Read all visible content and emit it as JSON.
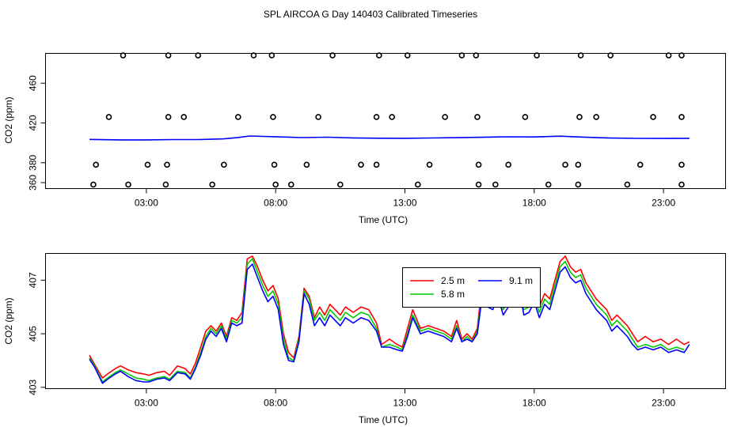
{
  "page_title": "SPL AIRCOA G  Day 140403  Calibrated Timeseries",
  "chart_data": [
    {
      "type": "line",
      "xlabel": "Time (UTC)",
      "ylabel": "CO2 (ppm)",
      "x_unit": "hours UTC",
      "xlim": [
        -0.9,
        25.4
      ],
      "ylim": [
        354,
        490
      ],
      "x_ticks": [
        3,
        8,
        13,
        18,
        23
      ],
      "x_tick_labels": [
        "03:00",
        "08:00",
        "13:00",
        "18:00",
        "23:00"
      ],
      "y_ticks": [
        360,
        380,
        420,
        460
      ],
      "y_tick_labels": [
        "360",
        "380",
        "420",
        "460"
      ],
      "grid": false,
      "colors": {
        "line": "#0000ff",
        "overlay": "#ff0000",
        "marker": "#000000"
      },
      "series": [
        {
          "style": "line",
          "color": "#0000ff",
          "x": [
            0.8,
            2.0,
            3.0,
            4.0,
            5.0,
            6.0,
            6.5,
            7.0,
            8.0,
            9.0,
            10.0,
            11.0,
            12.0,
            13.0,
            14.0,
            15.0,
            16.0,
            17.0,
            18.0,
            19.0,
            20.0,
            21.0,
            22.0,
            23.0,
            24.0
          ],
          "y": [
            403.5,
            403.0,
            403.0,
            403.3,
            403.3,
            404.0,
            405.2,
            406.9,
            406.2,
            405.3,
            405.7,
            405.0,
            404.7,
            404.6,
            404.9,
            405.2,
            405.6,
            406.1,
            405.9,
            406.7,
            405.6,
            404.8,
            404.5,
            404.4,
            404.6
          ]
        },
        {
          "style": "points",
          "color": "#000000",
          "points": [
            [
              0.95,
              358
            ],
            [
              2.3,
              358
            ],
            [
              3.75,
              358
            ],
            [
              5.55,
              358
            ],
            [
              8.0,
              358
            ],
            [
              8.6,
              358
            ],
            [
              10.5,
              358
            ],
            [
              13.5,
              358
            ],
            [
              15.85,
              358
            ],
            [
              16.5,
              358
            ],
            [
              18.55,
              358
            ],
            [
              19.7,
              358
            ],
            [
              21.6,
              358
            ],
            [
              23.7,
              358
            ],
            [
              1.05,
              378
            ],
            [
              3.05,
              378
            ],
            [
              3.8,
              378
            ],
            [
              6.0,
              378
            ],
            [
              7.95,
              378
            ],
            [
              9.2,
              378
            ],
            [
              11.3,
              378
            ],
            [
              11.9,
              378
            ],
            [
              13.95,
              378
            ],
            [
              15.85,
              378
            ],
            [
              17.0,
              378
            ],
            [
              19.2,
              378
            ],
            [
              19.7,
              378
            ],
            [
              22.1,
              378
            ],
            [
              23.7,
              378
            ],
            [
              1.55,
              426
            ],
            [
              3.85,
              426
            ],
            [
              4.45,
              426
            ],
            [
              6.55,
              426
            ],
            [
              7.9,
              426
            ],
            [
              9.65,
              426
            ],
            [
              11.9,
              426
            ],
            [
              12.5,
              426
            ],
            [
              14.55,
              426
            ],
            [
              15.8,
              426
            ],
            [
              17.65,
              426
            ],
            [
              19.75,
              426
            ],
            [
              20.4,
              426
            ],
            [
              22.6,
              426
            ],
            [
              23.7,
              426
            ],
            [
              2.1,
              488
            ],
            [
              3.85,
              488
            ],
            [
              5.0,
              488
            ],
            [
              7.15,
              488
            ],
            [
              7.85,
              488
            ],
            [
              10.2,
              488
            ],
            [
              12.0,
              488
            ],
            [
              13.1,
              488
            ],
            [
              15.2,
              488
            ],
            [
              15.75,
              488
            ],
            [
              18.1,
              488
            ],
            [
              19.8,
              488
            ],
            [
              20.95,
              488
            ],
            [
              23.2,
              488
            ],
            [
              23.7,
              488
            ]
          ]
        }
      ]
    },
    {
      "type": "line",
      "xlabel": "Time (UTC)",
      "ylabel": "CO2 (ppm)",
      "x_unit": "hours UTC",
      "xlim": [
        -0.9,
        25.4
      ],
      "ylim": [
        402.95,
        408.0
      ],
      "x_ticks": [
        3,
        8,
        13,
        18,
        23
      ],
      "x_tick_labels": [
        "03:00",
        "08:00",
        "13:00",
        "18:00",
        "23:00"
      ],
      "y_ticks": [
        403,
        405,
        407
      ],
      "y_tick_labels": [
        "403",
        "405",
        "407"
      ],
      "grid": false,
      "legend_position": "top-right",
      "x": [
        0.8,
        1.0,
        1.3,
        1.5,
        1.8,
        2.0,
        2.3,
        2.6,
        2.9,
        3.1,
        3.4,
        3.7,
        3.9,
        4.2,
        4.5,
        4.7,
        4.9,
        5.1,
        5.3,
        5.5,
        5.7,
        5.9,
        6.1,
        6.3,
        6.5,
        6.7,
        6.9,
        7.1,
        7.3,
        7.5,
        7.7,
        7.9,
        8.1,
        8.3,
        8.5,
        8.7,
        8.9,
        9.1,
        9.3,
        9.5,
        9.7,
        9.9,
        10.1,
        10.3,
        10.5,
        10.7,
        11.0,
        11.3,
        11.6,
        11.9,
        12.1,
        12.4,
        12.7,
        12.9,
        13.1,
        13.3,
        13.6,
        13.9,
        14.2,
        14.5,
        14.8,
        15.0,
        15.2,
        15.4,
        15.6,
        15.8,
        16.0,
        16.2,
        16.4,
        16.6,
        16.8,
        17.0,
        17.2,
        17.4,
        17.6,
        17.8,
        18.0,
        18.2,
        18.4,
        18.6,
        18.8,
        19.0,
        19.2,
        19.4,
        19.6,
        19.8,
        20.0,
        20.2,
        20.4,
        20.6,
        20.8,
        21.0,
        21.2,
        21.4,
        21.6,
        21.8,
        22.0,
        22.3,
        22.6,
        22.9,
        23.2,
        23.5,
        23.8,
        24.0
      ],
      "series": [
        {
          "name": "2.5 m",
          "color": "#ff0000",
          "values": [
            404.2,
            403.85,
            403.35,
            403.5,
            403.7,
            403.8,
            403.65,
            403.55,
            403.5,
            403.45,
            403.55,
            403.6,
            403.45,
            403.8,
            403.7,
            403.5,
            403.9,
            404.5,
            405.1,
            405.3,
            405.1,
            405.4,
            404.9,
            405.6,
            405.5,
            405.8,
            407.8,
            407.9,
            407.5,
            407.0,
            406.6,
            406.8,
            406.3,
            405.0,
            404.3,
            404.1,
            404.9,
            406.7,
            406.4,
            405.6,
            406.0,
            405.7,
            406.1,
            405.9,
            405.7,
            406.0,
            405.8,
            406.0,
            405.9,
            405.4,
            404.6,
            404.8,
            404.6,
            404.5,
            405.2,
            405.9,
            405.2,
            405.3,
            405.2,
            405.1,
            404.9,
            405.5,
            404.8,
            405.0,
            404.8,
            405.2,
            407.0,
            406.4,
            406.3,
            406.8,
            406.1,
            406.4,
            406.6,
            407.3,
            406.1,
            406.2,
            406.6,
            406.0,
            406.5,
            406.3,
            407.0,
            407.7,
            407.9,
            407.5,
            407.3,
            407.4,
            406.9,
            406.6,
            406.3,
            406.1,
            405.9,
            405.5,
            405.7,
            405.5,
            405.3,
            405.0,
            404.7,
            404.9,
            404.7,
            404.8,
            404.6,
            404.8,
            404.6,
            404.7
          ]
        },
        {
          "name": "5.8 m",
          "color": "#00cc00",
          "values": [
            404.1,
            403.8,
            403.2,
            403.35,
            403.55,
            403.65,
            403.5,
            403.35,
            403.3,
            403.25,
            403.35,
            403.4,
            403.3,
            403.6,
            403.55,
            403.35,
            403.75,
            404.3,
            404.9,
            405.2,
            405.0,
            405.3,
            404.8,
            405.5,
            405.4,
            405.6,
            407.6,
            407.8,
            407.3,
            406.8,
            406.4,
            406.6,
            406.1,
            404.8,
            404.1,
            404.0,
            404.8,
            406.6,
            406.3,
            405.5,
            405.8,
            405.5,
            405.9,
            405.7,
            405.5,
            405.8,
            405.6,
            405.8,
            405.7,
            405.2,
            404.5,
            404.6,
            404.5,
            404.4,
            405.0,
            405.7,
            405.1,
            405.2,
            405.1,
            405.0,
            404.8,
            405.3,
            404.7,
            404.9,
            404.7,
            405.1,
            406.7,
            406.2,
            406.1,
            406.6,
            405.9,
            406.2,
            406.4,
            407.0,
            405.9,
            406.0,
            406.4,
            405.8,
            406.3,
            406.1,
            406.8,
            407.5,
            407.7,
            407.3,
            407.1,
            407.2,
            406.7,
            406.4,
            406.1,
            405.9,
            405.7,
            405.3,
            405.5,
            405.3,
            405.1,
            404.8,
            404.5,
            404.6,
            404.5,
            404.6,
            404.4,
            404.5,
            404.4,
            null
          ]
        },
        {
          "name": "9.1 m",
          "color": "#0000ff",
          "values": [
            404.05,
            403.75,
            403.15,
            403.3,
            403.5,
            403.6,
            403.4,
            403.25,
            403.2,
            403.2,
            403.3,
            403.35,
            403.25,
            403.55,
            403.5,
            403.3,
            403.7,
            404.2,
            404.8,
            405.1,
            404.9,
            405.2,
            404.7,
            405.4,
            405.3,
            405.4,
            407.4,
            407.6,
            407.1,
            406.6,
            406.2,
            406.4,
            405.9,
            404.6,
            404.0,
            403.95,
            404.7,
            406.5,
            406.1,
            405.3,
            405.6,
            405.3,
            405.7,
            405.5,
            405.3,
            405.6,
            405.4,
            405.6,
            405.5,
            405.1,
            404.5,
            404.5,
            404.4,
            404.35,
            404.9,
            405.6,
            405.0,
            405.1,
            405.0,
            404.9,
            404.7,
            405.2,
            404.7,
            404.8,
            404.7,
            405.0,
            406.5,
            406.0,
            405.9,
            406.4,
            405.7,
            406.0,
            406.2,
            406.8,
            405.7,
            405.8,
            406.2,
            405.6,
            406.1,
            405.9,
            406.6,
            407.3,
            407.5,
            407.1,
            406.9,
            407.0,
            406.5,
            406.2,
            405.9,
            405.7,
            405.5,
            405.1,
            405.3,
            405.1,
            404.9,
            404.6,
            404.4,
            404.5,
            404.4,
            404.5,
            404.3,
            404.4,
            404.3,
            404.6
          ]
        }
      ]
    }
  ]
}
